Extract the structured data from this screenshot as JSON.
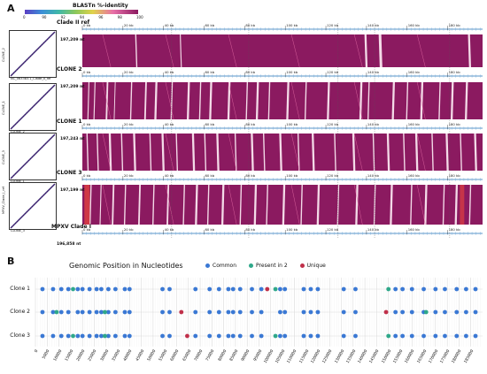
{
  "panel_a": {
    "letter": "A",
    "legend": {
      "title": "BLASTn %-identity",
      "ticks": [
        "0",
        "90",
        "92",
        "94",
        "96",
        "98",
        "100"
      ],
      "colors": [
        "#5b3fc4",
        "#3b8fd8",
        "#40b8a8",
        "#8dc85a",
        "#e0d24a",
        "#e86fa8",
        "#8b1a60"
      ]
    },
    "dotplots": [
      {
        "ylabel": "CLONE_2",
        "xlabel": "NC_063383.1_Clade_II_ref"
      },
      {
        "ylabel": "CLONE_1",
        "xlabel": "CLONE_2"
      },
      {
        "ylabel": "CLONE_3",
        "xlabel": "CLONE_1"
      },
      {
        "ylabel": "MPXV_Clade_I_ref",
        "xlabel": "CLONE_3"
      }
    ],
    "genomes": [
      {
        "name": "Clade II ref",
        "length": "197,209 nt"
      },
      {
        "name": "CLONE 2",
        "length": "197,209 nt"
      },
      {
        "name": "CLONE 1",
        "length": "197,243 nt"
      },
      {
        "name": "CLONE 3",
        "length": "197,199 nt"
      },
      {
        "name": "MPXV Clade I",
        "length": "196,858 nt"
      }
    ],
    "axis_ticks": [
      "0 kb",
      "20 kb",
      "40 kb",
      "60 kb",
      "80 kb",
      "100 kb",
      "120 kb",
      "140 kb",
      "160 kb",
      "180 kb"
    ],
    "comparison_color": "#8b1a60"
  },
  "panel_b": {
    "letter": "B",
    "title": "Genomic Position in Nucleotides",
    "legend": [
      {
        "label": "Common",
        "color": "#3a78d4"
      },
      {
        "label": "Present in 2",
        "color": "#2fa88a"
      },
      {
        "label": "Unique",
        "color": "#c0304a"
      }
    ]
  },
  "chart_data": {
    "type": "scatter",
    "title": "Genomic Position in Nucleotides",
    "xlabel": "",
    "ylabel": "",
    "categories": [
      "Clone 1",
      "Clone 2",
      "Clone 3"
    ],
    "x_ticks": [
      0,
      5000,
      10000,
      15000,
      20000,
      25000,
      30000,
      35000,
      40000,
      45000,
      50000,
      55000,
      60000,
      65000,
      70000,
      75000,
      80000,
      85000,
      90000,
      95000,
      100000,
      105000,
      110000,
      115000,
      120000,
      125000,
      130000,
      135000,
      140000,
      145000,
      150000,
      155000,
      160000,
      165000,
      170000,
      175000,
      180000,
      185000
    ],
    "xlim": [
      0,
      190000
    ],
    "series": [
      {
        "name": "Common",
        "color": "#3a78d4",
        "points": [
          {
            "clone": "Clone 1",
            "x": 3000
          },
          {
            "clone": "Clone 1",
            "x": 7500
          },
          {
            "clone": "Clone 1",
            "x": 11000
          },
          {
            "clone": "Clone 1",
            "x": 14000
          },
          {
            "clone": "Clone 1",
            "x": 18000
          },
          {
            "clone": "Clone 1",
            "x": 20000
          },
          {
            "clone": "Clone 1",
            "x": 23000
          },
          {
            "clone": "Clone 1",
            "x": 26000
          },
          {
            "clone": "Clone 1",
            "x": 28000
          },
          {
            "clone": "Clone 1",
            "x": 31000
          },
          {
            "clone": "Clone 1",
            "x": 34000
          },
          {
            "clone": "Clone 1",
            "x": 38000
          },
          {
            "clone": "Clone 1",
            "x": 40000
          },
          {
            "clone": "Clone 1",
            "x": 54000
          },
          {
            "clone": "Clone 1",
            "x": 57000
          },
          {
            "clone": "Clone 1",
            "x": 68000
          },
          {
            "clone": "Clone 1",
            "x": 74000
          },
          {
            "clone": "Clone 1",
            "x": 78000
          },
          {
            "clone": "Clone 1",
            "x": 82000
          },
          {
            "clone": "Clone 1",
            "x": 84000
          },
          {
            "clone": "Clone 1",
            "x": 87000
          },
          {
            "clone": "Clone 1",
            "x": 92000
          },
          {
            "clone": "Clone 1",
            "x": 96000
          },
          {
            "clone": "Clone 1",
            "x": 104000
          },
          {
            "clone": "Clone 1",
            "x": 106000
          },
          {
            "clone": "Clone 1",
            "x": 114000
          },
          {
            "clone": "Clone 1",
            "x": 117000
          },
          {
            "clone": "Clone 1",
            "x": 120000
          },
          {
            "clone": "Clone 1",
            "x": 131000
          },
          {
            "clone": "Clone 1",
            "x": 136000
          },
          {
            "clone": "Clone 1",
            "x": 153000
          },
          {
            "clone": "Clone 1",
            "x": 156000
          },
          {
            "clone": "Clone 1",
            "x": 160000
          },
          {
            "clone": "Clone 1",
            "x": 165000
          },
          {
            "clone": "Clone 1",
            "x": 170000
          },
          {
            "clone": "Clone 1",
            "x": 174000
          },
          {
            "clone": "Clone 1",
            "x": 179000
          },
          {
            "clone": "Clone 1",
            "x": 183000
          },
          {
            "clone": "Clone 1",
            "x": 187000
          },
          {
            "clone": "Clone 2",
            "x": 3000
          },
          {
            "clone": "Clone 2",
            "x": 7500
          },
          {
            "clone": "Clone 2",
            "x": 11000
          },
          {
            "clone": "Clone 2",
            "x": 14000
          },
          {
            "clone": "Clone 2",
            "x": 18000
          },
          {
            "clone": "Clone 2",
            "x": 20000
          },
          {
            "clone": "Clone 2",
            "x": 23000
          },
          {
            "clone": "Clone 2",
            "x": 26000
          },
          {
            "clone": "Clone 2",
            "x": 28000
          },
          {
            "clone": "Clone 2",
            "x": 31000
          },
          {
            "clone": "Clone 2",
            "x": 34000
          },
          {
            "clone": "Clone 2",
            "x": 38000
          },
          {
            "clone": "Clone 2",
            "x": 40000
          },
          {
            "clone": "Clone 2",
            "x": 54000
          },
          {
            "clone": "Clone 2",
            "x": 57000
          },
          {
            "clone": "Clone 2",
            "x": 68000
          },
          {
            "clone": "Clone 2",
            "x": 74000
          },
          {
            "clone": "Clone 2",
            "x": 78000
          },
          {
            "clone": "Clone 2",
            "x": 82000
          },
          {
            "clone": "Clone 2",
            "x": 84000
          },
          {
            "clone": "Clone 2",
            "x": 87000
          },
          {
            "clone": "Clone 2",
            "x": 92000
          },
          {
            "clone": "Clone 2",
            "x": 96000
          },
          {
            "clone": "Clone 2",
            "x": 104000
          },
          {
            "clone": "Clone 2",
            "x": 106000
          },
          {
            "clone": "Clone 2",
            "x": 114000
          },
          {
            "clone": "Clone 2",
            "x": 117000
          },
          {
            "clone": "Clone 2",
            "x": 120000
          },
          {
            "clone": "Clone 2",
            "x": 131000
          },
          {
            "clone": "Clone 2",
            "x": 136000
          },
          {
            "clone": "Clone 2",
            "x": 153000
          },
          {
            "clone": "Clone 2",
            "x": 156000
          },
          {
            "clone": "Clone 2",
            "x": 160000
          },
          {
            "clone": "Clone 2",
            "x": 165000
          },
          {
            "clone": "Clone 2",
            "x": 170000
          },
          {
            "clone": "Clone 2",
            "x": 174000
          },
          {
            "clone": "Clone 2",
            "x": 179000
          },
          {
            "clone": "Clone 2",
            "x": 183000
          },
          {
            "clone": "Clone 2",
            "x": 187000
          },
          {
            "clone": "Clone 3",
            "x": 3000
          },
          {
            "clone": "Clone 3",
            "x": 7500
          },
          {
            "clone": "Clone 3",
            "x": 11000
          },
          {
            "clone": "Clone 3",
            "x": 14000
          },
          {
            "clone": "Clone 3",
            "x": 18000
          },
          {
            "clone": "Clone 3",
            "x": 20000
          },
          {
            "clone": "Clone 3",
            "x": 23000
          },
          {
            "clone": "Clone 3",
            "x": 26000
          },
          {
            "clone": "Clone 3",
            "x": 28000
          },
          {
            "clone": "Clone 3",
            "x": 31000
          },
          {
            "clone": "Clone 3",
            "x": 34000
          },
          {
            "clone": "Clone 3",
            "x": 38000
          },
          {
            "clone": "Clone 3",
            "x": 40000
          },
          {
            "clone": "Clone 3",
            "x": 54000
          },
          {
            "clone": "Clone 3",
            "x": 57000
          },
          {
            "clone": "Clone 3",
            "x": 68000
          },
          {
            "clone": "Clone 3",
            "x": 74000
          },
          {
            "clone": "Clone 3",
            "x": 78000
          },
          {
            "clone": "Clone 3",
            "x": 82000
          },
          {
            "clone": "Clone 3",
            "x": 84000
          },
          {
            "clone": "Clone 3",
            "x": 87000
          },
          {
            "clone": "Clone 3",
            "x": 92000
          },
          {
            "clone": "Clone 3",
            "x": 96000
          },
          {
            "clone": "Clone 3",
            "x": 104000
          },
          {
            "clone": "Clone 3",
            "x": 106000
          },
          {
            "clone": "Clone 3",
            "x": 114000
          },
          {
            "clone": "Clone 3",
            "x": 117000
          },
          {
            "clone": "Clone 3",
            "x": 120000
          },
          {
            "clone": "Clone 3",
            "x": 131000
          },
          {
            "clone": "Clone 3",
            "x": 136000
          },
          {
            "clone": "Clone 3",
            "x": 153000
          },
          {
            "clone": "Clone 3",
            "x": 156000
          },
          {
            "clone": "Clone 3",
            "x": 160000
          },
          {
            "clone": "Clone 3",
            "x": 165000
          },
          {
            "clone": "Clone 3",
            "x": 170000
          },
          {
            "clone": "Clone 3",
            "x": 174000
          },
          {
            "clone": "Clone 3",
            "x": 179000
          },
          {
            "clone": "Clone 3",
            "x": 183000
          },
          {
            "clone": "Clone 3",
            "x": 187000
          }
        ]
      },
      {
        "name": "Present in 2",
        "color": "#2fa88a",
        "points": [
          {
            "clone": "Clone 1",
            "x": 16000
          },
          {
            "clone": "Clone 1",
            "x": 102000
          },
          {
            "clone": "Clone 1",
            "x": 150000
          },
          {
            "clone": "Clone 2",
            "x": 9000
          },
          {
            "clone": "Clone 2",
            "x": 29500
          },
          {
            "clone": "Clone 2",
            "x": 166000
          },
          {
            "clone": "Clone 3",
            "x": 16000
          },
          {
            "clone": "Clone 3",
            "x": 29500
          },
          {
            "clone": "Clone 3",
            "x": 102000
          },
          {
            "clone": "Clone 3",
            "x": 150000
          }
        ]
      },
      {
        "name": "Unique",
        "color": "#c0304a",
        "points": [
          {
            "clone": "Clone 1",
            "x": 98500
          },
          {
            "clone": "Clone 2",
            "x": 62000
          },
          {
            "clone": "Clone 2",
            "x": 149000
          },
          {
            "clone": "Clone 3",
            "x": 64500
          }
        ]
      }
    ]
  }
}
